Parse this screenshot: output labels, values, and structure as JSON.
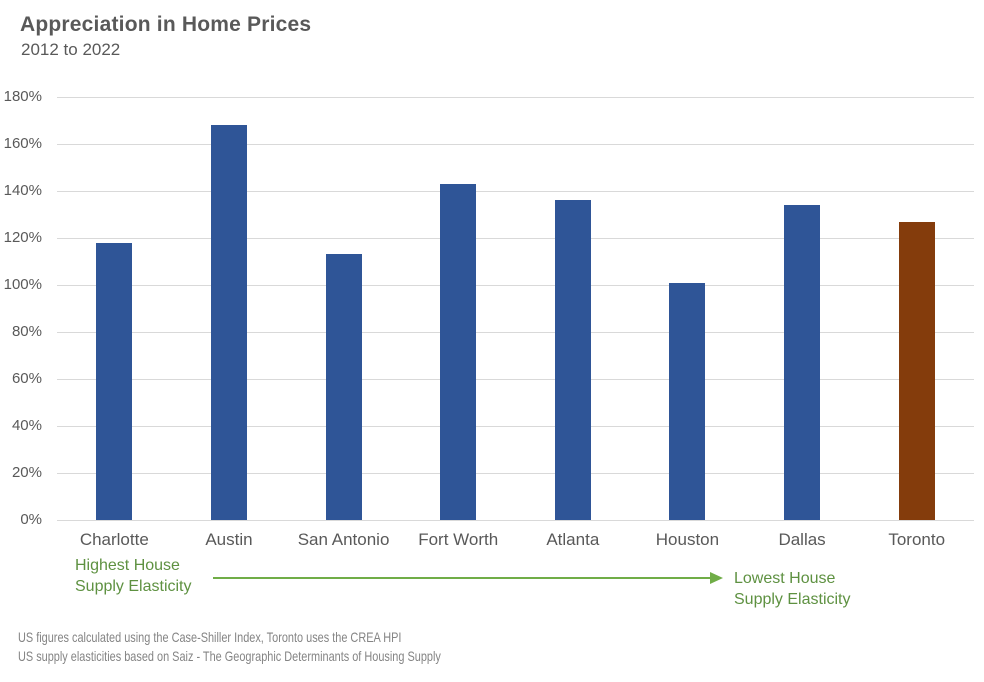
{
  "header": {
    "title": "Appreciation in Home Prices",
    "subtitle": "2012 to 2022"
  },
  "chart_data": {
    "type": "bar",
    "title": "Appreciation in Home Prices",
    "subtitle": "2012 to 2022",
    "categories": [
      "Charlotte",
      "Austin",
      "San Antonio",
      "Fort Worth",
      "Atlanta",
      "Houston",
      "Dallas",
      "Toronto"
    ],
    "values": [
      118,
      168,
      113,
      143,
      136,
      101,
      134,
      127
    ],
    "value_unit": "%",
    "xlabel": "",
    "ylabel": "",
    "ylim": [
      0,
      180
    ],
    "ytick_step": 20,
    "yticks": [
      "0%",
      "20%",
      "40%",
      "60%",
      "80%",
      "100%",
      "120%",
      "140%",
      "160%",
      "180%"
    ],
    "grid": "horizontal-only",
    "legend": "none",
    "bar_colors": [
      "#2F5597",
      "#2F5597",
      "#2F5597",
      "#2F5597",
      "#2F5597",
      "#2F5597",
      "#2F5597",
      "#843C0C"
    ],
    "gridline_color": "#D9D9D9"
  },
  "annotation": {
    "left_line1": "Highest House",
    "left_line2": "Supply Elasticity",
    "right_line1": "Lowest House",
    "right_line2": "Supply Elasticity",
    "arrow_direction": "right",
    "color": "#70AD47",
    "text_color": "#5E9141"
  },
  "footnotes": [
    "US figures calculated using the Case-Shiller Index, Toronto uses the CREA HPI",
    "US supply elasticities based on Saiz - The Geographic Determinants of Housing Supply"
  ],
  "colors": {
    "us_bar": "#2F5597",
    "toronto_bar": "#843C0C",
    "annotation_green": "#70AD47",
    "text_gray": "#595959",
    "footnote_gray": "#848484",
    "gridline": "#D9D9D9"
  }
}
